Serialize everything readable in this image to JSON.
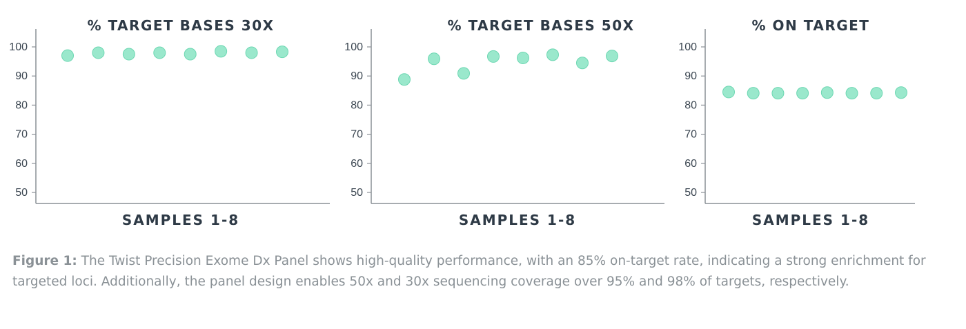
{
  "chart_data": [
    {
      "type": "scatter",
      "title": "% TARGET BASES 30X",
      "xlabel": "SAMPLES 1-8",
      "ylabel": "",
      "ylim": [
        47,
        105
      ],
      "yticks": [
        50,
        60,
        70,
        80,
        90,
        100
      ],
      "x": [
        1,
        2,
        3,
        4,
        5,
        6,
        7,
        8
      ],
      "values": [
        97.0,
        98.0,
        97.5,
        98.0,
        97.5,
        98.5,
        98.0,
        98.3
      ],
      "grid": false,
      "color": "#9ae8cc"
    },
    {
      "type": "scatter",
      "title": "% TARGET BASES 50X",
      "xlabel": "SAMPLES 1-8",
      "ylabel": "",
      "ylim": [
        47,
        105
      ],
      "yticks": [
        50,
        60,
        70,
        80,
        90,
        100
      ],
      "x": [
        1,
        2,
        3,
        4,
        5,
        6,
        7,
        8
      ],
      "values": [
        88.8,
        95.9,
        90.9,
        96.7,
        96.2,
        97.3,
        94.5,
        96.9
      ],
      "grid": false,
      "color": "#9ae8cc"
    },
    {
      "type": "scatter",
      "title": "% ON TARGET",
      "xlabel": "SAMPLES 1-8",
      "ylabel": "",
      "ylim": [
        47,
        105
      ],
      "yticks": [
        50,
        60,
        70,
        80,
        90,
        100
      ],
      "x": [
        1,
        2,
        3,
        4,
        5,
        6,
        7,
        8
      ],
      "values": [
        84.5,
        84.1,
        84.1,
        84.1,
        84.3,
        84.1,
        84.1,
        84.3
      ],
      "grid": false,
      "color": "#9ae8cc"
    }
  ],
  "caption": {
    "label": "Figure 1:",
    "text": " The Twist Precision Exome Dx Panel shows high-quality performance, with an 85% on-target rate, indicating a strong enrichment for targeted loci. Additionally, the panel design enables 50x and 30x sequencing coverage over 95% and 98% of targets, respectively."
  }
}
